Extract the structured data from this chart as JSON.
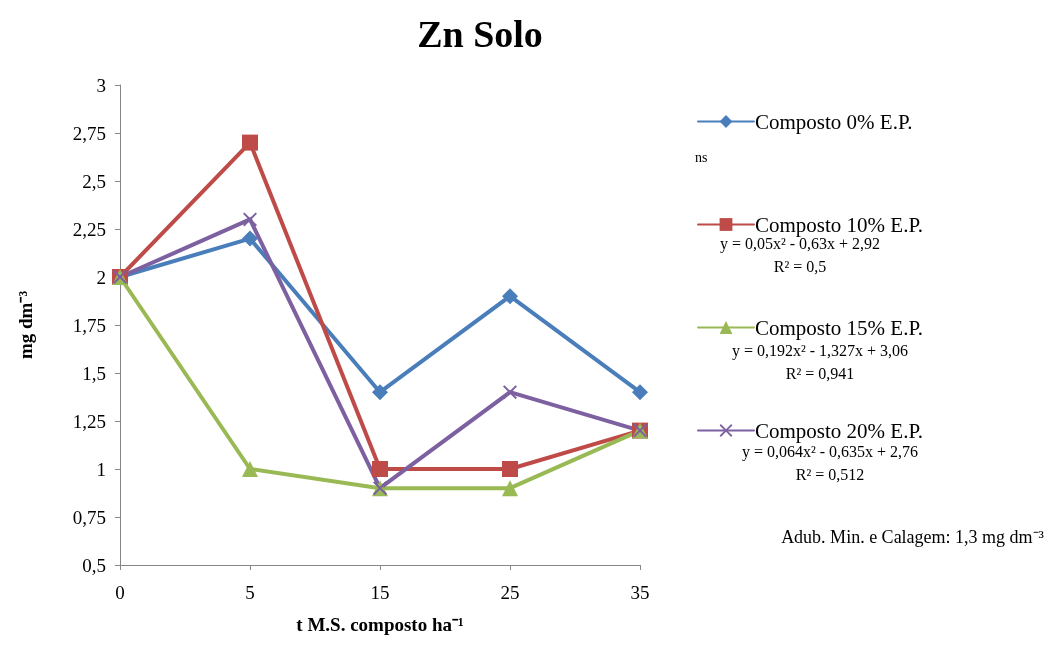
{
  "chart_data": {
    "type": "line",
    "title": "Zn Solo",
    "xlabel": "t M.S. composto ha⁻¹",
    "ylabel": "mg dm⁻³",
    "categories": [
      "0",
      "5",
      "15",
      "25",
      "35"
    ],
    "series": [
      {
        "name": "Composto 0% E.P.",
        "color": "#4a7ebb",
        "marker": "diamond",
        "values": [
          2,
          2.2,
          1.4,
          1.9,
          1.4
        ]
      },
      {
        "name": "Composto 10% E.P.",
        "color": "#be4b48",
        "marker": "square",
        "values": [
          2,
          2.7,
          1.0,
          1.0,
          1.2
        ]
      },
      {
        "name": "Composto 15% E.P.",
        "color": "#98b954",
        "marker": "triangle",
        "values": [
          2,
          1.0,
          0.9,
          0.9,
          1.2
        ]
      },
      {
        "name": "Composto 20% E.P.",
        "color": "#7d60a0",
        "marker": "cross",
        "values": [
          2,
          2.3,
          0.9,
          1.4,
          1.2
        ]
      }
    ],
    "ylim": [
      0.5,
      3
    ],
    "yticks": [
      {
        "value": 0.5,
        "label": "0,5"
      },
      {
        "value": 0.75,
        "label": "0,75"
      },
      1,
      {
        "value": 1.25,
        "label": "1,25"
      },
      {
        "value": 1.5,
        "label": "1,5"
      },
      {
        "value": 1.75,
        "label": "1,75"
      },
      2,
      {
        "value": 2.25,
        "label": "2,25"
      },
      {
        "value": 2.5,
        "label": "2,5"
      },
      {
        "value": 2.75,
        "label": "2,75"
      },
      3
    ],
    "grid": false,
    "legend": "right",
    "line_style": "solid",
    "annotations": [
      "ns",
      "y = 0,05x² - 0,63x + 2,92",
      "R² = 0,5",
      "y = 0,192x² - 1,327x + 3,06",
      "R² = 0,941",
      "y = 0,064x² - 0,635x + 2,76",
      "R² = 0,512",
      "Adub. Min. e Calagem: 1,3 mg dm⁻³"
    ]
  }
}
